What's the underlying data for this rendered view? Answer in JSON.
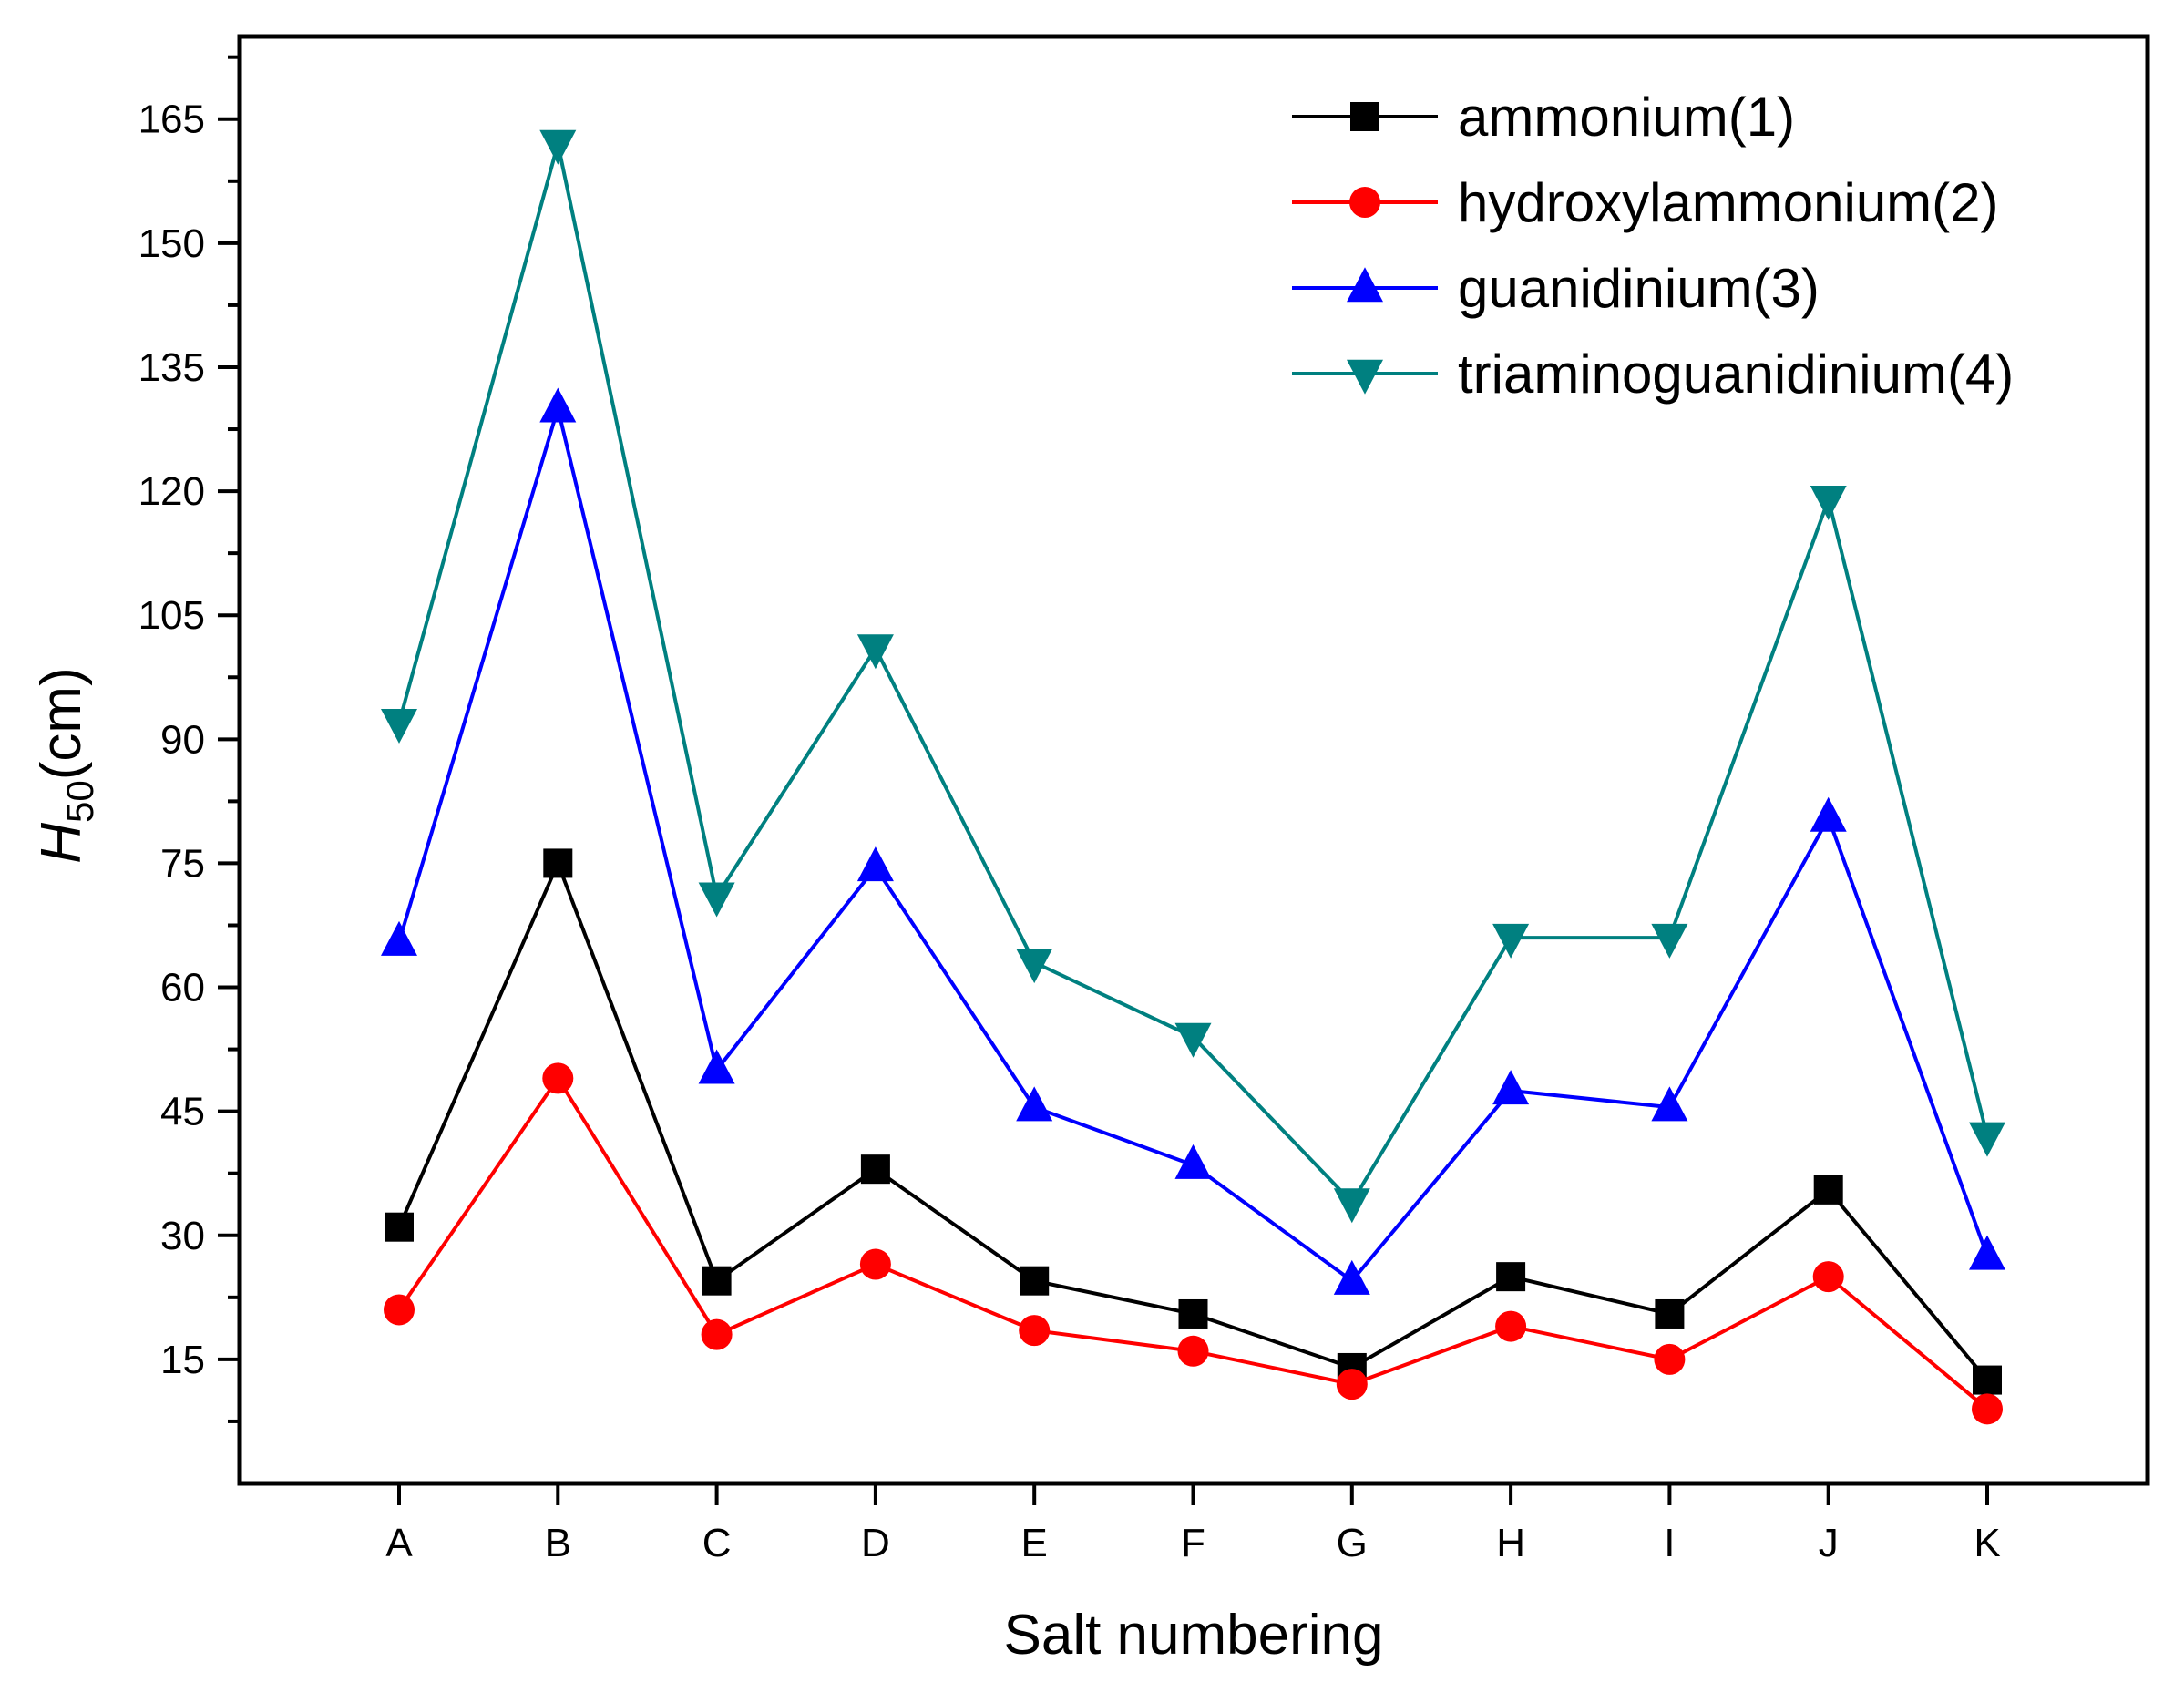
{
  "chart_data": {
    "type": "line",
    "categories": [
      "A",
      "B",
      "C",
      "D",
      "E",
      "F",
      "G",
      "H",
      "I",
      "J",
      "K"
    ],
    "xlabel": "Salt numbering",
    "ylabel": {
      "main": "H",
      "sub": "50",
      "unit": "(cm)"
    },
    "ylim": [
      0,
      175
    ],
    "yticks": [
      15,
      30,
      45,
      60,
      75,
      90,
      105,
      120,
      135,
      150,
      165
    ],
    "grid": false,
    "legend_position": "top-right",
    "series": [
      {
        "name": "ammonium(1)",
        "color": "#000000",
        "marker": "square",
        "values": [
          31,
          75,
          24.5,
          38,
          24.5,
          20.5,
          14,
          25,
          20.5,
          35.5,
          12.5
        ]
      },
      {
        "name": "hydroxylammonium(2)",
        "color": "#ff0000",
        "marker": "circle",
        "values": [
          21,
          49,
          18,
          26.5,
          18.5,
          16,
          12,
          19,
          15,
          25,
          9
        ]
      },
      {
        "name": "guanidinium(3)",
        "color": "#0000ff",
        "marker": "triangle-up",
        "values": [
          65.5,
          130,
          50,
          74.5,
          45.5,
          38.5,
          24.5,
          47.5,
          45.5,
          80.5,
          27.5
        ]
      },
      {
        "name": "triaminoguanidinium(4)",
        "color": "#008080",
        "marker": "triangle-down",
        "values": [
          92,
          162,
          71,
          101,
          63,
          54,
          34,
          66,
          66,
          119,
          42
        ]
      }
    ]
  }
}
